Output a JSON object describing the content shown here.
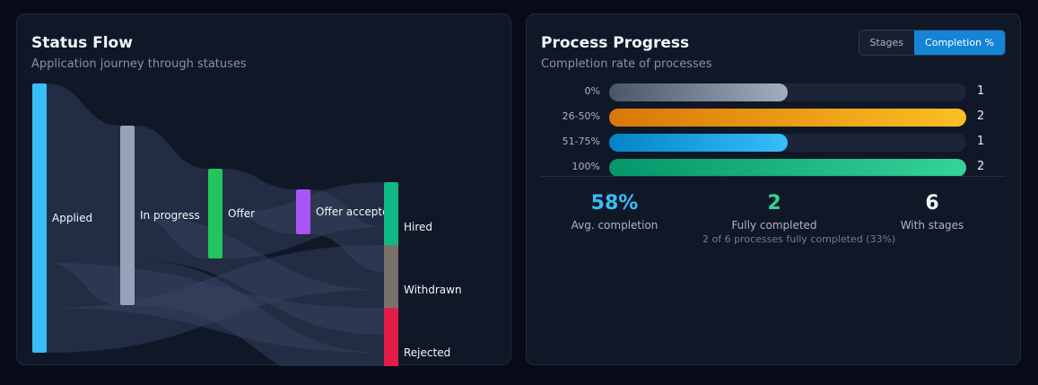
{
  "status_flow": {
    "title": "Status Flow",
    "subtitle": "Application journey through statuses",
    "nodes": [
      {
        "id": "applied",
        "label": "Applied",
        "color": "#38bdf8"
      },
      {
        "id": "in_progress",
        "label": "In progress",
        "color": "#94a3b8"
      },
      {
        "id": "offer",
        "label": "Offer",
        "color": "#22c55e"
      },
      {
        "id": "offer_accepted",
        "label": "Offer accepted",
        "color": "#a855f7"
      },
      {
        "id": "hired",
        "label": "Hired",
        "color": "#10b981"
      },
      {
        "id": "withdrawn",
        "label": "Withdrawn",
        "color": "#78716c"
      },
      {
        "id": "rejected",
        "label": "Rejected",
        "color": "#e11d48"
      }
    ],
    "links": [
      {
        "source": "applied",
        "target": "in_progress",
        "value": 4
      },
      {
        "source": "applied",
        "target": "rejected",
        "value": 1
      },
      {
        "source": "applied",
        "target": "withdrawn",
        "value": 1
      },
      {
        "source": "in_progress",
        "target": "offer",
        "value": 2
      },
      {
        "source": "in_progress",
        "target": "withdrawn",
        "value": 1
      },
      {
        "source": "in_progress",
        "target": "rejected",
        "value": 1
      },
      {
        "source": "offer",
        "target": "offer_accepted",
        "value": 1
      },
      {
        "source": "offer",
        "target": "hired",
        "value": 1
      },
      {
        "source": "offer_accepted",
        "target": "hired",
        "value": 1
      }
    ]
  },
  "process_progress": {
    "title": "Process Progress",
    "subtitle": "Completion rate of processes",
    "toggle": {
      "stages_label": "Stages",
      "completion_label": "Completion %",
      "active": "completion"
    },
    "rows": [
      {
        "label": "0%",
        "count": "1",
        "fill": 0.5,
        "c1": "#4b5568",
        "c2": "#a0aec0"
      },
      {
        "label": "26-50%",
        "count": "2",
        "fill": 1.0,
        "c1": "#d97706",
        "c2": "#fbbf24"
      },
      {
        "label": "51-75%",
        "count": "1",
        "fill": 0.5,
        "c1": "#0284c7",
        "c2": "#38bdf8"
      },
      {
        "label": "100%",
        "count": "2",
        "fill": 1.0,
        "c1": "#059669",
        "c2": "#34d399"
      }
    ],
    "stats": {
      "avg_value": "58%",
      "avg_label": "Avg. completion",
      "avg_color": "#38bdf8",
      "full_value": "2",
      "full_label": "Fully completed",
      "full_color": "#34d399",
      "full_note": "2 of 6 processes fully completed (33%)",
      "stages_value": "6",
      "stages_label": "With stages",
      "stages_color": "#f1f5fb"
    }
  }
}
